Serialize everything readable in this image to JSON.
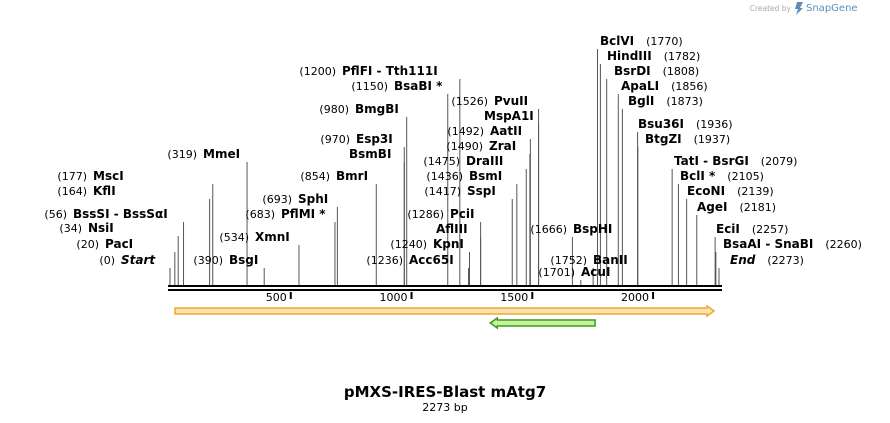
{
  "watermark": {
    "prefix": "Created by",
    "brand": "SnapGene"
  },
  "map": {
    "title": "pMXS-IRES-Blast mAtg7",
    "length_label": "2273 bp",
    "total_length": 2273,
    "axis_ticks": [
      500,
      1000,
      1500,
      2000
    ],
    "axis_tick_labels": [
      "500",
      "1000",
      "1500",
      "2000"
    ]
  },
  "sites": [
    {
      "name": "Start",
      "pos": 0,
      "pos_label": "(0)",
      "italic": true,
      "star": false,
      "side": "left"
    },
    {
      "name": "PacI",
      "pos": 20,
      "pos_label": "(20)",
      "italic": false,
      "star": false,
      "side": "left"
    },
    {
      "name": "NsiI",
      "pos": 34,
      "pos_label": "(34)",
      "italic": false,
      "star": false,
      "side": "left"
    },
    {
      "name": "BssSI - BssSαI",
      "pos": 56,
      "pos_label": "(56)",
      "italic": false,
      "star": false,
      "side": "left"
    },
    {
      "name": "KflI",
      "pos": 164,
      "pos_label": "(164)",
      "italic": false,
      "star": false,
      "side": "left"
    },
    {
      "name": "MscI",
      "pos": 177,
      "pos_label": "(177)",
      "italic": false,
      "star": false,
      "side": "left"
    },
    {
      "name": "MmeI",
      "pos": 319,
      "pos_label": "(319)",
      "italic": false,
      "star": false,
      "side": "right"
    },
    {
      "name": "BsgI",
      "pos": 390,
      "pos_label": "(390)",
      "italic": false,
      "star": false,
      "side": "right"
    },
    {
      "name": "XmnI",
      "pos": 534,
      "pos_label": "(534)",
      "italic": false,
      "star": false,
      "side": "right"
    },
    {
      "name": "PflMI",
      "pos": 683,
      "pos_label": "(683)",
      "italic": false,
      "star": true,
      "side": "right"
    },
    {
      "name": "SphI",
      "pos": 693,
      "pos_label": "(693)",
      "italic": false,
      "star": false,
      "side": "right"
    },
    {
      "name": "BmrI",
      "pos": 854,
      "pos_label": "(854)",
      "italic": false,
      "star": false,
      "side": "right"
    },
    {
      "name": "Esp3I",
      "pos": 970,
      "pos_label": "(970)",
      "italic": false,
      "star": false,
      "side": "right"
    },
    {
      "name": "BsmBI",
      "pos": 970,
      "pos_label": "",
      "italic": false,
      "star": false,
      "side": "right"
    },
    {
      "name": "BmgBI",
      "pos": 980,
      "pos_label": "(980)",
      "italic": false,
      "star": false,
      "side": "right"
    },
    {
      "name": "BsaBI",
      "pos": 1150,
      "pos_label": "(1150)",
      "italic": false,
      "star": true,
      "side": "right"
    },
    {
      "name": "PflFI - Tth111I",
      "pos": 1200,
      "pos_label": "(1200)",
      "italic": false,
      "star": false,
      "side": "right"
    },
    {
      "name": "Acc65I",
      "pos": 1236,
      "pos_label": "(1236)",
      "italic": false,
      "star": false,
      "side": "right"
    },
    {
      "name": "KpnI",
      "pos": 1240,
      "pos_label": "(1240)",
      "italic": false,
      "star": false,
      "side": "right"
    },
    {
      "name": "AflIII",
      "pos": 1286,
      "pos_label": "",
      "italic": false,
      "star": false,
      "side": "right"
    },
    {
      "name": "PciI",
      "pos": 1286,
      "pos_label": "(1286)",
      "italic": false,
      "star": false,
      "side": "right"
    },
    {
      "name": "SspI",
      "pos": 1417,
      "pos_label": "(1417)",
      "italic": false,
      "star": false,
      "side": "right"
    },
    {
      "name": "BsmI",
      "pos": 1436,
      "pos_label": "(1436)",
      "italic": false,
      "star": false,
      "side": "right"
    },
    {
      "name": "DraIII",
      "pos": 1475,
      "pos_label": "(1475)",
      "italic": false,
      "star": false,
      "side": "right"
    },
    {
      "name": "ZraI",
      "pos": 1490,
      "pos_label": "(1490)",
      "italic": false,
      "star": false,
      "side": "right"
    },
    {
      "name": "AatII",
      "pos": 1492,
      "pos_label": "(1492)",
      "italic": false,
      "star": false,
      "side": "right"
    },
    {
      "name": "MspA1I",
      "pos": 1526,
      "pos_label": "",
      "italic": false,
      "star": false,
      "side": "right"
    },
    {
      "name": "PvuII",
      "pos": 1526,
      "pos_label": "(1526)",
      "italic": false,
      "star": false,
      "side": "right"
    },
    {
      "name": "BspHI",
      "pos": 1666,
      "pos_label": "(1666)",
      "italic": false,
      "star": false,
      "side": "left"
    },
    {
      "name": "AcuI",
      "pos": 1701,
      "pos_label": "(1701)",
      "italic": false,
      "star": false,
      "side": "left"
    },
    {
      "name": "BanII",
      "pos": 1752,
      "pos_label": "(1752)",
      "italic": false,
      "star": false,
      "side": "left"
    },
    {
      "name": "BclVI",
      "pos": 1770,
      "pos_label": "(1770)",
      "italic": false,
      "star": false,
      "side": "left"
    },
    {
      "name": "HindIII",
      "pos": 1782,
      "pos_label": "(1782)",
      "italic": false,
      "star": false,
      "side": "left"
    },
    {
      "name": "BsrDI",
      "pos": 1808,
      "pos_label": "(1808)",
      "italic": false,
      "star": false,
      "side": "left"
    },
    {
      "name": "ApaLI",
      "pos": 1856,
      "pos_label": "(1856)",
      "italic": false,
      "star": false,
      "side": "left"
    },
    {
      "name": "BglI",
      "pos": 1873,
      "pos_label": "(1873)",
      "italic": false,
      "star": false,
      "side": "left"
    },
    {
      "name": "Bsu36I",
      "pos": 1936,
      "pos_label": "(1936)",
      "italic": false,
      "star": false,
      "side": "left"
    },
    {
      "name": "BtgZI",
      "pos": 1937,
      "pos_label": "(1937)",
      "italic": false,
      "star": false,
      "side": "left"
    },
    {
      "name": "TatI - BsrGI",
      "pos": 2079,
      "pos_label": "(2079)",
      "italic": false,
      "star": false,
      "side": "left"
    },
    {
      "name": "BclI",
      "pos": 2105,
      "pos_label": "(2105)",
      "italic": false,
      "star": true,
      "side": "left"
    },
    {
      "name": "EcoNI",
      "pos": 2139,
      "pos_label": "(2139)",
      "italic": false,
      "star": false,
      "side": "left"
    },
    {
      "name": "AgeI",
      "pos": 2181,
      "pos_label": "(2181)",
      "italic": false,
      "star": false,
      "side": "left"
    },
    {
      "name": "EciI",
      "pos": 2257,
      "pos_label": "(2257)",
      "italic": false,
      "star": false,
      "side": "left"
    },
    {
      "name": "BsaAI - SnaBI",
      "pos": 2260,
      "pos_label": "(2260)",
      "italic": false,
      "star": false,
      "side": "left"
    },
    {
      "name": "End",
      "pos": 2273,
      "pos_label": "(2273)",
      "italic": true,
      "star": false,
      "side": "left"
    }
  ],
  "features": [
    {
      "name": "orange-feature",
      "start": 0,
      "end": 2273,
      "direction": "forward",
      "color": "#f0a830",
      "fill": "#fde3b0"
    },
    {
      "name": "green-feature",
      "start": 1326,
      "end": 1760,
      "direction": "reverse",
      "color": "#3a9d18",
      "fill": "#c8f0a0"
    }
  ]
}
